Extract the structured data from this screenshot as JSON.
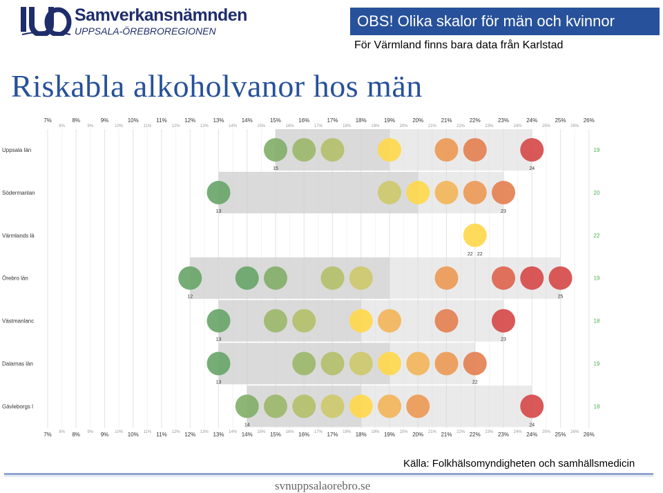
{
  "header": {
    "logo_name": "Samverkansnämnden",
    "logo_region": "UPPSALA-ÖREBROREGIONEN",
    "warning": "OBS! Olika skalor för män och kvinnor",
    "note": "För Värmland finns bara data från Karlstad",
    "title": "Riskabla alkoholvanor hos män"
  },
  "footer": {
    "source": "Källa: Folkhälsomyndigheten och samhällsmedicin",
    "url": "svnuppsalaorebro.se"
  },
  "colors": {
    "title": "#27519a",
    "banner": "#27519a",
    "green": "#6aa66a",
    "yellow": "#ffd84d",
    "orange": "#eb9a4e",
    "red": "#d9524f",
    "range_band": "#d9d9d9"
  },
  "chart_data": {
    "type": "scatter",
    "x_unit": "%",
    "xlim": [
      7,
      26
    ],
    "major_ticks": [
      "7%",
      "8%",
      "9%",
      "10%",
      "11%",
      "12%",
      "13%",
      "14%",
      "15%",
      "16%",
      "17%",
      "18%",
      "19%",
      "20%",
      "21%",
      "22%",
      "23%",
      "24%",
      "25%",
      "26%"
    ],
    "minor_ticks": [
      "8%",
      "9%",
      "10%",
      "11%",
      "12%",
      "13%",
      "14%",
      "15%",
      "16%",
      "17%",
      "18%",
      "19%",
      "20%",
      "21%",
      "22%",
      "23%",
      "24%",
      "25%",
      "26%"
    ],
    "grid": true,
    "rows": [
      {
        "label": "Uppsala län",
        "min": 15,
        "max": 24,
        "mean": 19,
        "min_label": "15",
        "max_label": "24",
        "mean_label": "19",
        "points": [
          15,
          16,
          17,
          19,
          21,
          22,
          24
        ]
      },
      {
        "label": "Södermanlan",
        "min": 13,
        "max": 23,
        "mean": 20,
        "min_label": "13",
        "max_label": "23",
        "mean_label": "20",
        "points": [
          13,
          19,
          20,
          21,
          22,
          23
        ]
      },
      {
        "label": "Värmlands lä",
        "min": 22,
        "max": 22,
        "mean": 22,
        "min_label": "22",
        "max_label": "22",
        "mean_label": "22",
        "points": [
          22
        ]
      },
      {
        "label": "Örebro län",
        "min": 12,
        "max": 25,
        "mean": 19,
        "min_label": "12",
        "max_label": "25",
        "mean_label": "19",
        "points": [
          12,
          14,
          15,
          17,
          18,
          21,
          23,
          24,
          25
        ]
      },
      {
        "label": "Västmanlanc",
        "min": 13,
        "max": 23,
        "mean": 18,
        "min_label": "13",
        "max_label": "23",
        "mean_label": "18",
        "points": [
          13,
          15,
          16,
          18,
          19,
          21,
          23
        ]
      },
      {
        "label": "Dalarnas län",
        "min": 13,
        "max": 22,
        "mean": 19,
        "min_label": "13",
        "max_label": "22",
        "mean_label": "19",
        "points": [
          13,
          16,
          17,
          18,
          19,
          20,
          21,
          22
        ]
      },
      {
        "label": "Gävleborgs l",
        "min": 14,
        "max": 24,
        "mean": 18,
        "min_label": "14",
        "max_label": "24",
        "mean_label": "18",
        "points": [
          14,
          15,
          16,
          17,
          18,
          19,
          20,
          24
        ]
      }
    ]
  }
}
